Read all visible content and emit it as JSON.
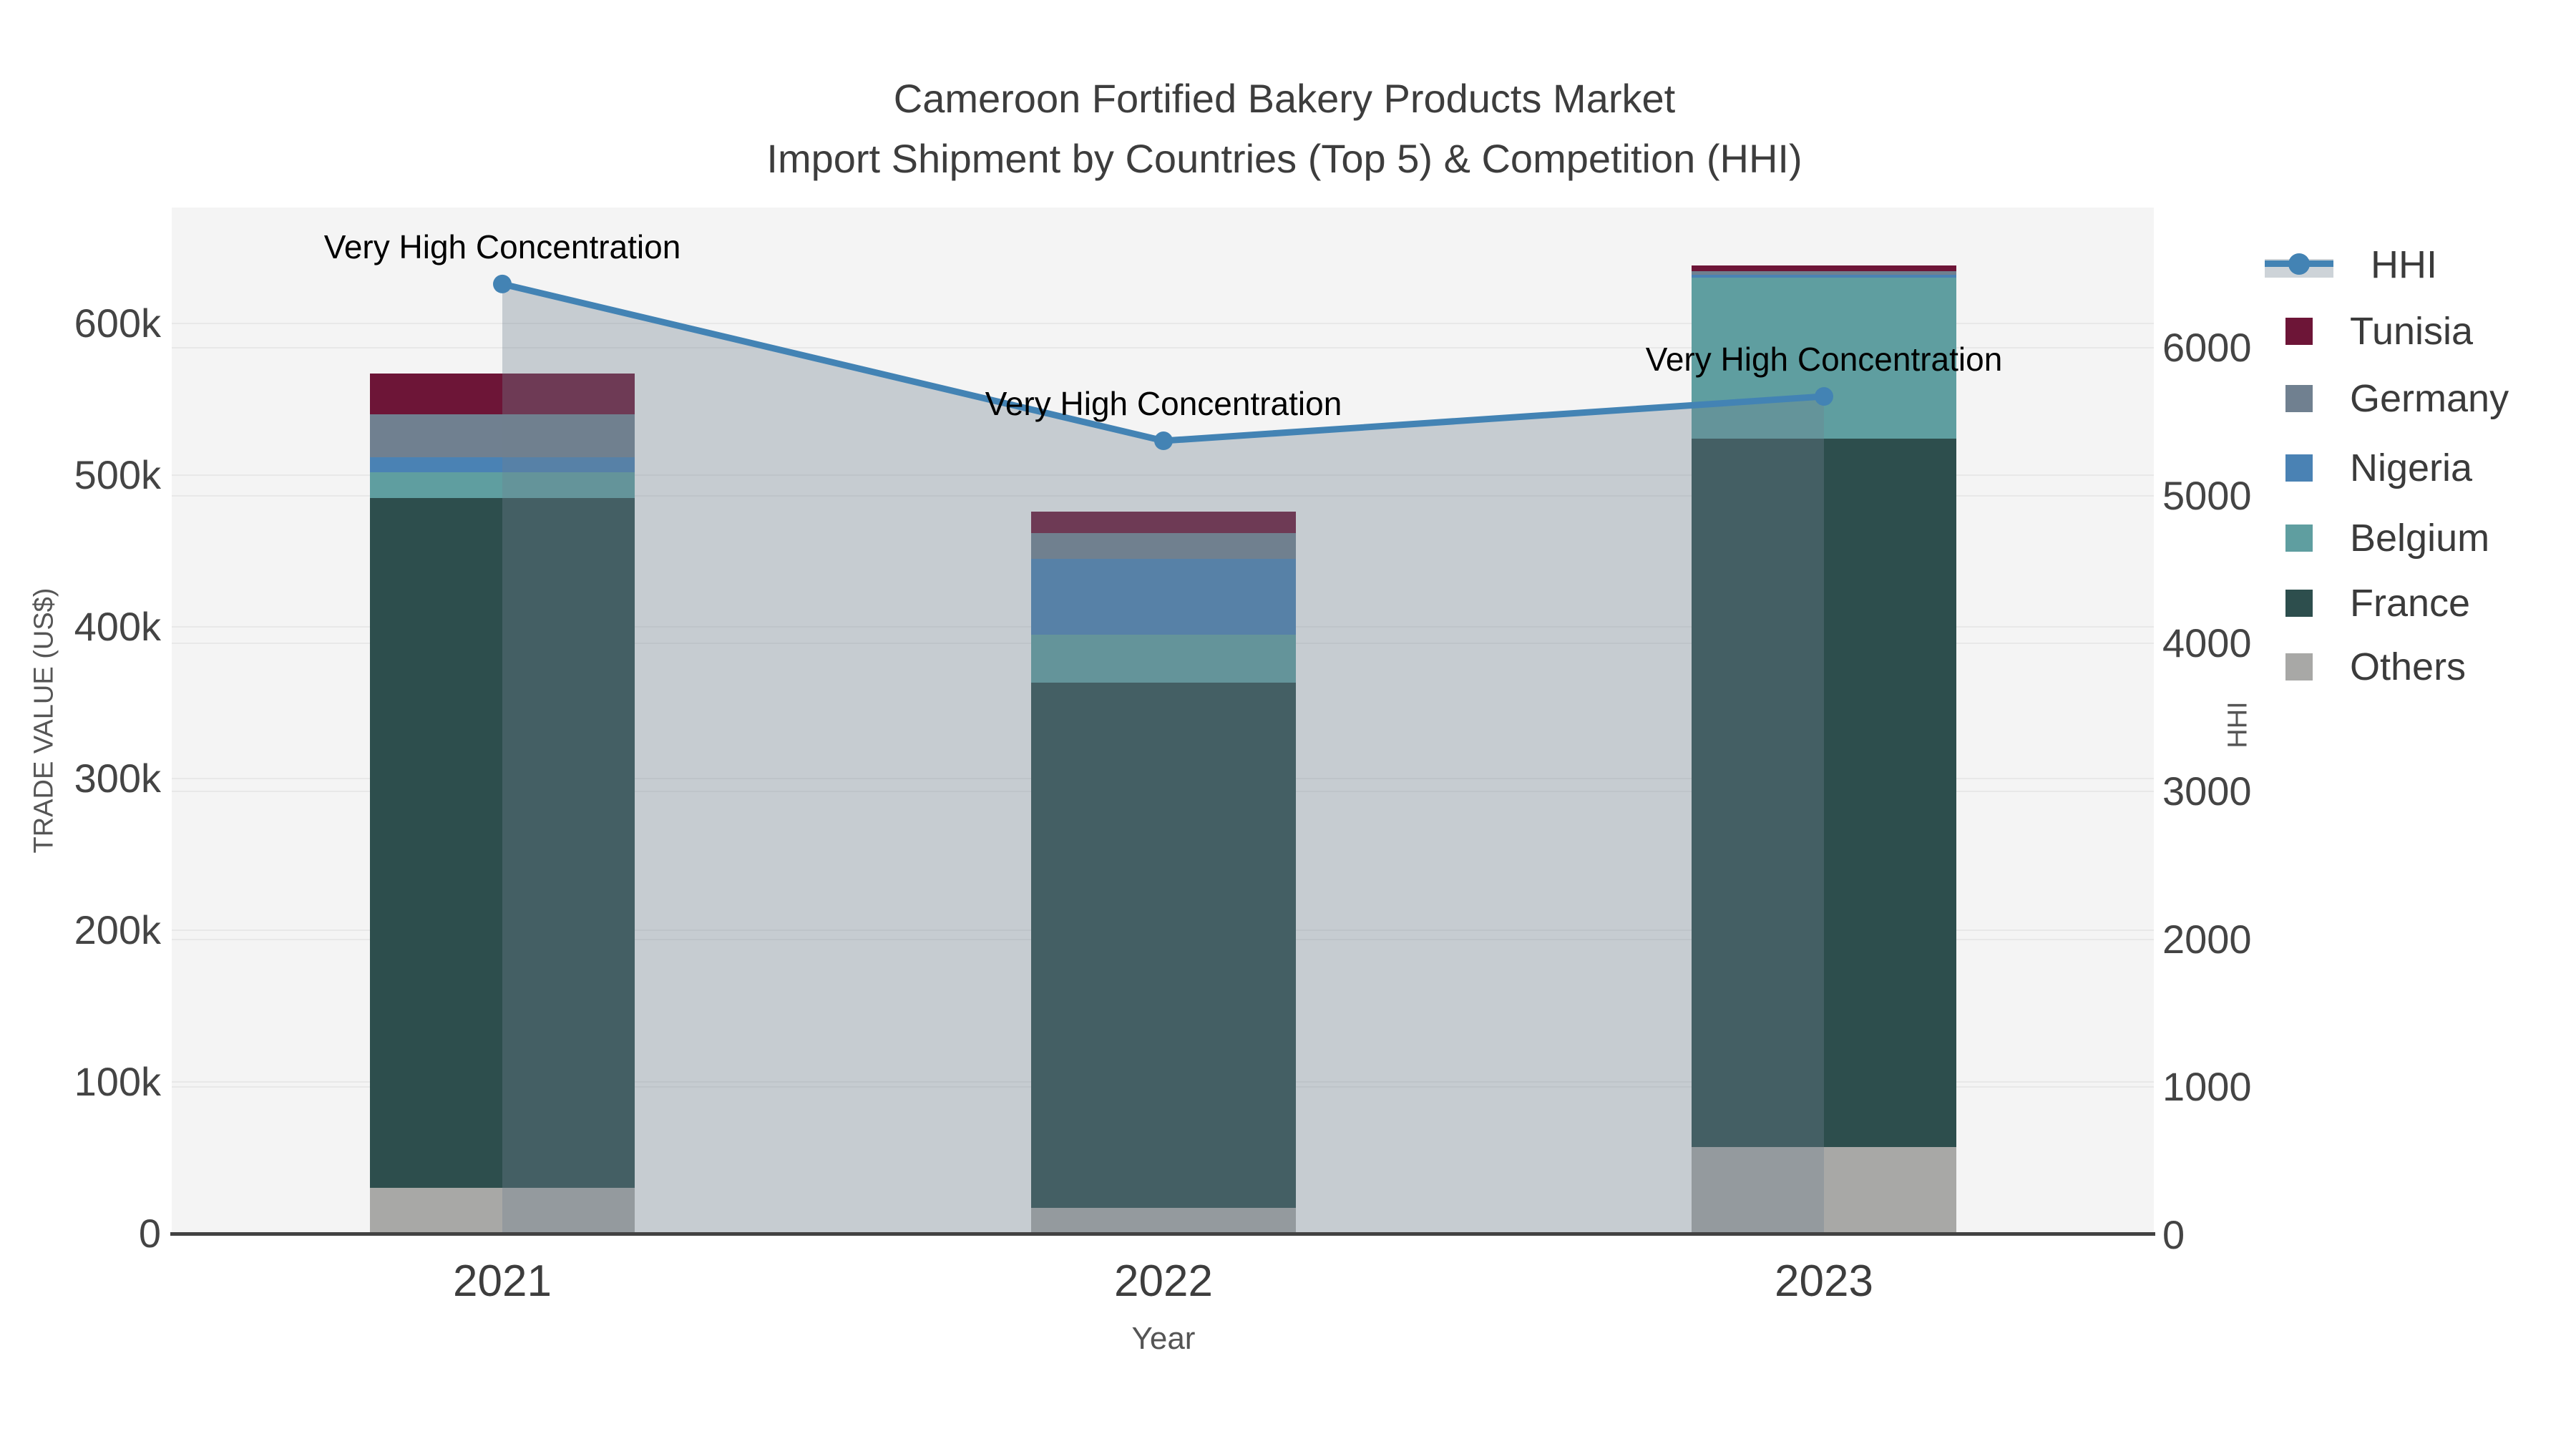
{
  "title": {
    "line1": "Cameroon Fortified Bakery Products Market",
    "line2": "Import Shipment by Countries (Top 5) & Competition (HHI)"
  },
  "colors": {
    "plot_background": "#f4f4f4",
    "gridline": "#e8e8e8",
    "axis_line": "#424242",
    "hhi_line": "#4383b4",
    "hhi_area_fill": "rgba(112,128,144,0.35)"
  },
  "chart_data": {
    "type": "bar",
    "subtype": "stacked-bars-with-line-overlay",
    "categories": [
      "2021",
      "2022",
      "2023"
    ],
    "bar_series": [
      {
        "name": "Others",
        "color": "#a8a8a6",
        "values": [
          30000,
          17000,
          57000
        ]
      },
      {
        "name": "France",
        "color": "#2d4e4d",
        "values": [
          455000,
          346000,
          467000
        ]
      },
      {
        "name": "Belgium",
        "color": "#5f9ea0",
        "values": [
          17000,
          32000,
          106000
        ]
      },
      {
        "name": "Nigeria",
        "color": "#4a82b4",
        "values": [
          10000,
          50000,
          2000
        ]
      },
      {
        "name": "Germany",
        "color": "#708090",
        "values": [
          28000,
          17000,
          2500
        ]
      },
      {
        "name": "Tunisia",
        "color": "#6d1537",
        "values": [
          27000,
          14000,
          3500
        ]
      }
    ],
    "line_series": {
      "name": "HHI",
      "color": "#4383b4",
      "area_fill": "rgba(112,128,144,0.35)",
      "values": [
        6430,
        5370,
        5670
      ]
    },
    "annotations": [
      {
        "category": "2021",
        "text": "Very High Concentration"
      },
      {
        "category": "2022",
        "text": "Very High Concentration"
      },
      {
        "category": "2023",
        "text": "Very High Concentration"
      }
    ],
    "left_axis": {
      "title": "TRADE VALUE (US$)",
      "tick_values": [
        0,
        100000,
        200000,
        300000,
        400000,
        500000,
        600000
      ],
      "tick_labels": [
        "0",
        "100k",
        "200k",
        "300k",
        "400k",
        "500k",
        "600k"
      ],
      "range": [
        0,
        676000
      ],
      "grid": true
    },
    "right_axis": {
      "title": "HHI",
      "tick_values": [
        0,
        1000,
        2000,
        3000,
        4000,
        5000,
        6000
      ],
      "tick_labels": [
        "0",
        "1000",
        "2000",
        "3000",
        "4000",
        "5000",
        "6000"
      ],
      "range": [
        0,
        6940
      ],
      "grid": true
    },
    "x_axis": {
      "title": "Year"
    },
    "legend": {
      "position": "right",
      "entries": [
        "HHI",
        "Tunisia",
        "Germany",
        "Nigeria",
        "Belgium",
        "France",
        "Others"
      ]
    }
  }
}
